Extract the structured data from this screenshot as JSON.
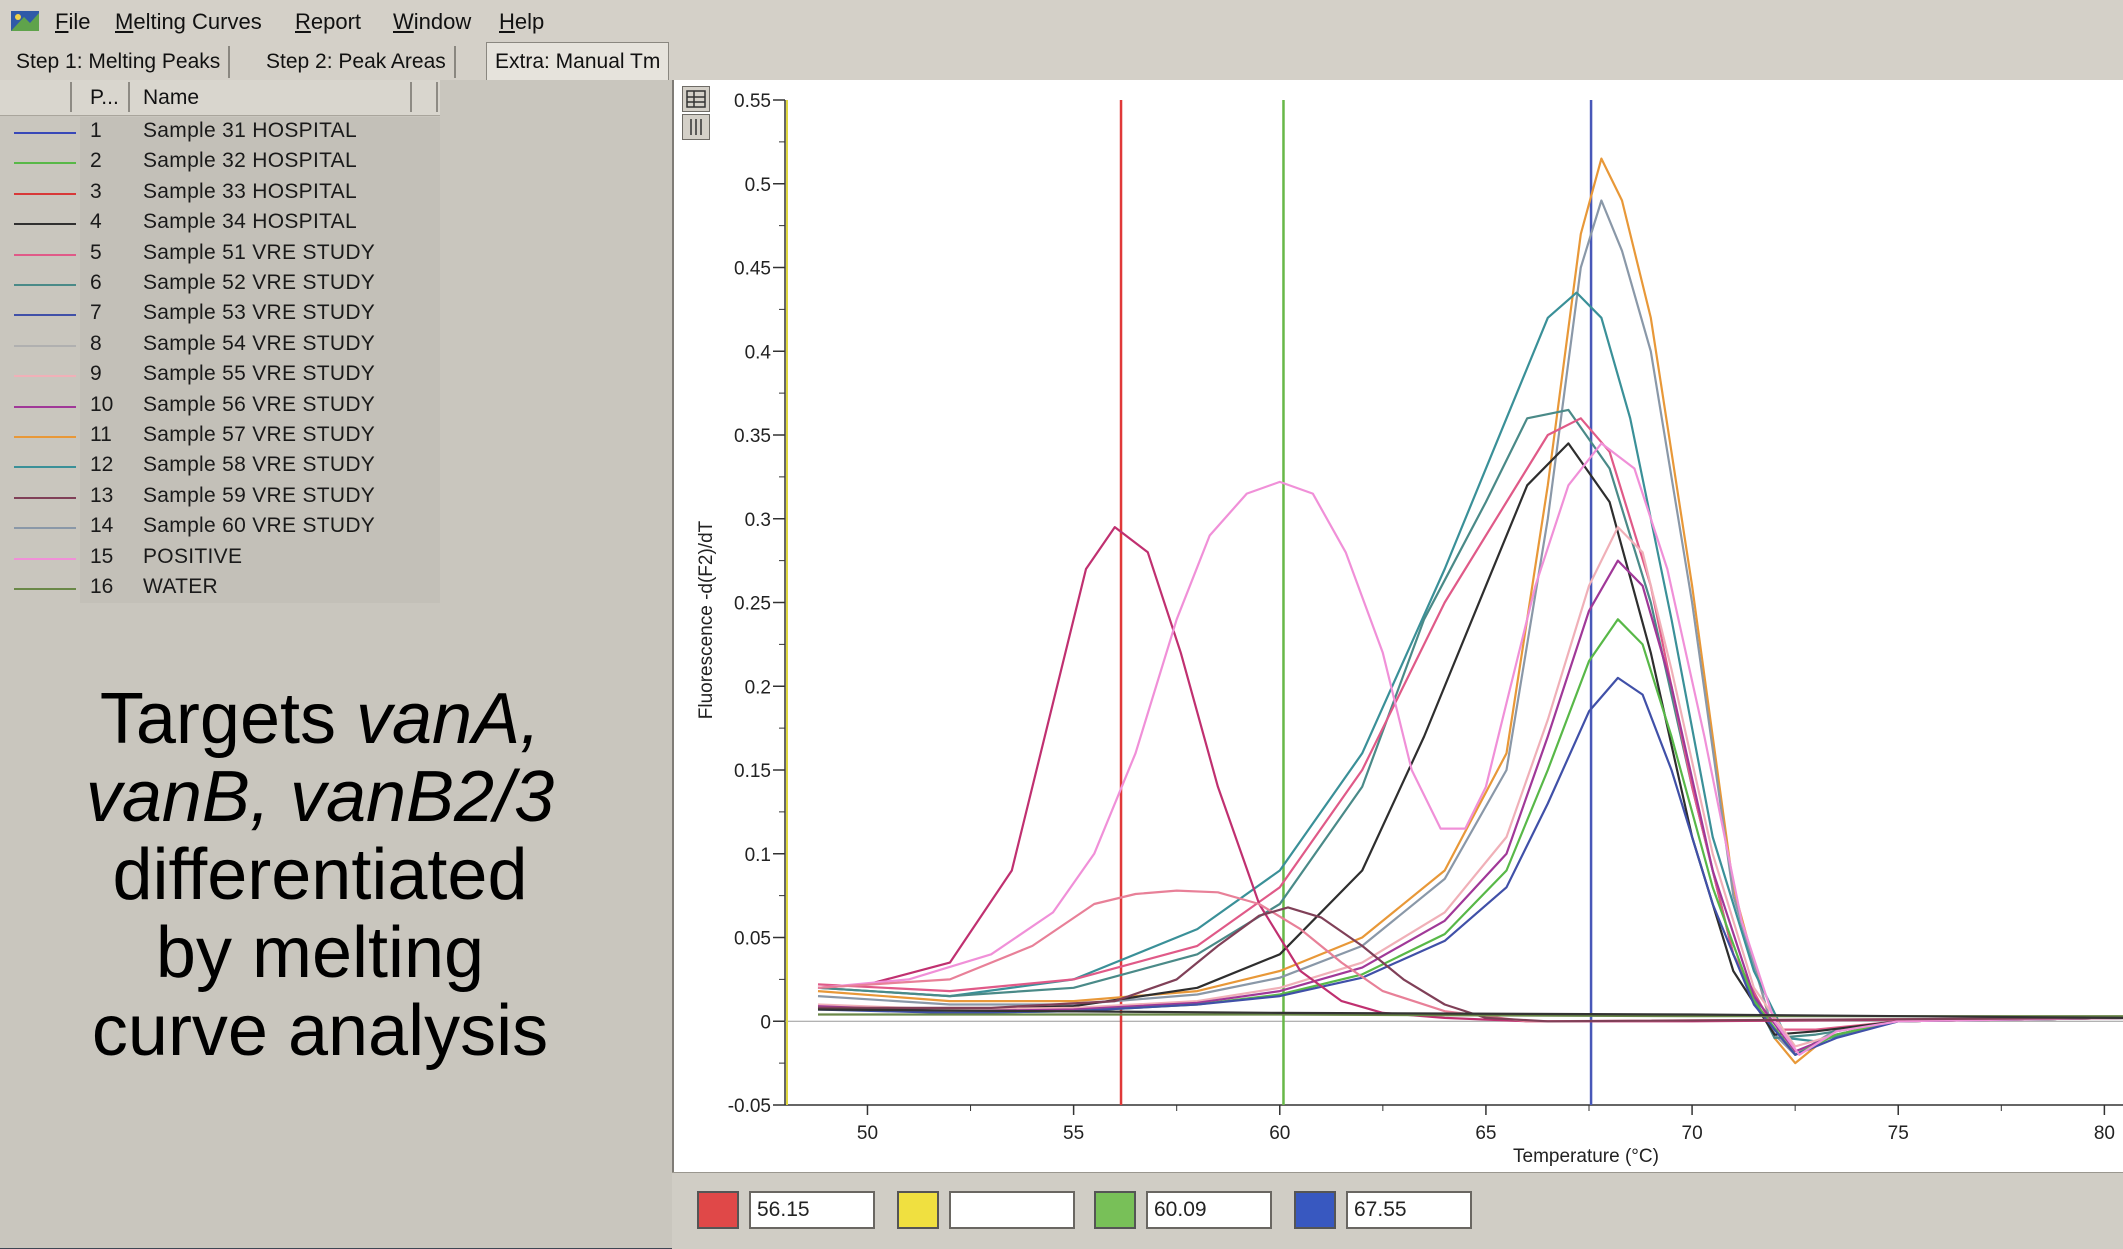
{
  "menu": [
    "File",
    "Melting Curves",
    "Report",
    "Window",
    "Help"
  ],
  "tabs": [
    {
      "label": "Step 1: Melting Peaks",
      "active": false
    },
    {
      "label": "Step 2: Peak Areas",
      "active": false
    },
    {
      "label": "Extra: Manual Tm",
      "active": true
    }
  ],
  "list": {
    "headers": {
      "pos": "P...",
      "name": "Name"
    },
    "samples": [
      {
        "idx": "1",
        "name": "Sample 31 HOSPITAL",
        "color": "#3848b8"
      },
      {
        "idx": "2",
        "name": "Sample 32 HOSPITAL",
        "color": "#58b848"
      },
      {
        "idx": "3",
        "name": "Sample 33 HOSPITAL",
        "color": "#d83838"
      },
      {
        "idx": "4",
        "name": "Sample 34 HOSPITAL",
        "color": "#303030"
      },
      {
        "idx": "5",
        "name": "Sample 51 VRE STUDY",
        "color": "#e05a88"
      },
      {
        "idx": "6",
        "name": "Sample 52 VRE STUDY",
        "color": "#4a8a88"
      },
      {
        "idx": "7",
        "name": "Sample 53 VRE STUDY",
        "color": "#4050a8"
      },
      {
        "idx": "8",
        "name": "Sample 54 VRE STUDY",
        "color": "#b0b0b0"
      },
      {
        "idx": "9",
        "name": "Sample 55 VRE STUDY",
        "color": "#f0b0b8"
      },
      {
        "idx": "10",
        "name": "Sample 56 VRE STUDY",
        "color": "#a03898"
      },
      {
        "idx": "11",
        "name": "Sample 57 VRE STUDY",
        "color": "#e89838"
      },
      {
        "idx": "12",
        "name": "Sample 58 VRE STUDY",
        "color": "#3a9098"
      },
      {
        "idx": "13",
        "name": "Sample 59 VRE STUDY",
        "color": "#804058"
      },
      {
        "idx": "14",
        "name": "Sample 60 VRE STUDY",
        "color": "#8a98a8"
      },
      {
        "idx": "15",
        "name": "POSITIVE",
        "color": "#f090d8"
      },
      {
        "idx": "16",
        "name": "WATER",
        "color": "#6a8848"
      }
    ]
  },
  "caption": {
    "line1_plain": "Targets ",
    "line1_italic": "vanA,",
    "line2_italic": "vanB, vanB2/3",
    "line3": "differentiated",
    "line4": "by melting",
    "line5": "curve analysis"
  },
  "tm_fields": [
    {
      "color": "#e04848",
      "value": "56.15"
    },
    {
      "color": "#f0e040",
      "value": ""
    },
    {
      "color": "#78c058",
      "value": "60.09"
    },
    {
      "color": "#3858c0",
      "value": "67.55"
    }
  ],
  "chart_data": {
    "type": "line",
    "xlabel": "Temperature (°C)",
    "ylabel": "Fluorescence -d(F2)/dT",
    "xlim": [
      48,
      80.5
    ],
    "ylim": [
      -0.05,
      0.55
    ],
    "xticks": [
      50,
      55,
      60,
      65,
      70,
      75,
      80
    ],
    "yticks": [
      -0.05,
      0,
      0.05,
      0.1,
      0.15,
      0.2,
      0.25,
      0.3,
      0.35,
      0.4,
      0.45,
      0.5,
      0.55
    ],
    "ytick_labels": [
      "-0.05",
      "0",
      "0.05",
      "0.1",
      "0.15",
      "0.2",
      "0.25",
      "0.3",
      "0.35",
      "0.4",
      "0.45",
      "0.5",
      "0.55"
    ],
    "tm_markers": [
      {
        "x": 56.15,
        "color": "#e03838"
      },
      {
        "x": 60.09,
        "color": "#68b848"
      },
      {
        "x": 67.55,
        "color": "#4858b8"
      }
    ],
    "series": [
      {
        "color": "#e89838",
        "x": [
          48.8,
          52,
          55,
          58,
          60,
          62,
          64,
          65.5,
          66.5,
          67.3,
          67.8,
          68.3,
          69,
          70,
          71,
          72,
          72.5,
          73.5,
          75,
          80.5
        ],
        "y": [
          0.018,
          0.012,
          0.012,
          0.018,
          0.03,
          0.05,
          0.09,
          0.16,
          0.32,
          0.47,
          0.515,
          0.49,
          0.42,
          0.26,
          0.08,
          -0.01,
          -0.025,
          -0.005,
          0.0,
          0.002
        ]
      },
      {
        "color": "#8a98a8",
        "x": [
          48.8,
          52,
          55,
          58,
          60,
          62,
          64,
          65.5,
          66.5,
          67.3,
          67.8,
          68.3,
          69,
          70,
          71,
          72,
          72.5,
          73.5,
          75,
          80.5
        ],
        "y": [
          0.015,
          0.01,
          0.01,
          0.016,
          0.026,
          0.045,
          0.085,
          0.15,
          0.3,
          0.45,
          0.49,
          0.46,
          0.4,
          0.25,
          0.075,
          -0.008,
          -0.02,
          -0.005,
          0.0,
          0.002
        ]
      },
      {
        "color": "#3a9098",
        "x": [
          48.8,
          52,
          55,
          58,
          60,
          62,
          64,
          65.5,
          66.5,
          67.2,
          67.8,
          68.5,
          69.5,
          70.5,
          71.5,
          72.3,
          73,
          75,
          80.5
        ],
        "y": [
          0.02,
          0.015,
          0.025,
          0.055,
          0.09,
          0.16,
          0.27,
          0.36,
          0.42,
          0.435,
          0.42,
          0.36,
          0.24,
          0.11,
          0.03,
          -0.01,
          -0.012,
          0.0,
          0.002
        ]
      },
      {
        "color": "#4a8a88",
        "x": [
          48.8,
          52,
          55,
          58,
          60,
          62,
          63.5,
          65,
          66,
          67,
          68,
          69,
          70,
          71,
          72,
          73,
          75,
          80.5
        ],
        "y": [
          0.02,
          0.015,
          0.02,
          0.04,
          0.07,
          0.14,
          0.24,
          0.31,
          0.36,
          0.365,
          0.33,
          0.25,
          0.14,
          0.04,
          -0.01,
          -0.008,
          0.0,
          0.002
        ]
      },
      {
        "color": "#e05a88",
        "x": [
          48.8,
          52,
          55,
          58,
          60,
          62,
          64,
          65.5,
          66.5,
          67.3,
          68,
          69,
          70,
          71,
          72,
          73,
          75,
          80.5
        ],
        "y": [
          0.022,
          0.018,
          0.025,
          0.045,
          0.08,
          0.15,
          0.25,
          0.31,
          0.35,
          0.36,
          0.34,
          0.26,
          0.14,
          0.04,
          -0.005,
          -0.005,
          0.0,
          0.002
        ]
      },
      {
        "color": "#2e2e2e",
        "x": [
          48.8,
          52,
          55,
          58,
          60,
          62,
          63.5,
          65,
          66,
          67,
          68,
          69,
          70,
          71,
          72,
          73,
          75,
          80.5
        ],
        "y": [
          0.008,
          0.007,
          0.009,
          0.02,
          0.04,
          0.09,
          0.17,
          0.26,
          0.32,
          0.345,
          0.31,
          0.22,
          0.11,
          0.03,
          -0.008,
          -0.006,
          0.0,
          0.002
        ]
      },
      {
        "color": "#f0b0b8",
        "x": [
          48.8,
          52,
          55,
          58,
          60,
          62,
          64,
          65.5,
          66.5,
          67.5,
          68.2,
          68.8,
          69.5,
          70.5,
          71.5,
          72.5,
          73.5,
          75,
          80.5
        ],
        "y": [
          0.01,
          0.007,
          0.008,
          0.012,
          0.02,
          0.035,
          0.065,
          0.11,
          0.18,
          0.26,
          0.295,
          0.28,
          0.21,
          0.1,
          0.02,
          -0.015,
          -0.008,
          0.0,
          0.002
        ]
      },
      {
        "color": "#a03898",
        "x": [
          48.8,
          52,
          55,
          58,
          60,
          62,
          64,
          65.5,
          66.5,
          67.5,
          68.2,
          68.8,
          69.5,
          70.5,
          71.5,
          72.5,
          73.5,
          75,
          80.5
        ],
        "y": [
          0.009,
          0.006,
          0.007,
          0.011,
          0.018,
          0.032,
          0.06,
          0.1,
          0.17,
          0.245,
          0.275,
          0.26,
          0.2,
          0.09,
          0.015,
          -0.018,
          -0.008,
          0.0,
          0.002
        ]
      },
      {
        "color": "#58b848",
        "x": [
          48.8,
          52,
          55,
          58,
          60,
          62,
          64,
          65.5,
          66.5,
          67.5,
          68.2,
          68.8,
          69.5,
          70.5,
          71.5,
          72.5,
          73.5,
          75,
          80.5
        ],
        "y": [
          0.008,
          0.005,
          0.006,
          0.01,
          0.016,
          0.028,
          0.052,
          0.09,
          0.15,
          0.215,
          0.24,
          0.225,
          0.17,
          0.08,
          0.012,
          -0.02,
          -0.008,
          0.0,
          0.002
        ]
      },
      {
        "color": "#4050a8",
        "x": [
          48.8,
          52,
          55,
          58,
          60,
          62,
          64,
          65.5,
          66.5,
          67.5,
          68.2,
          68.8,
          69.5,
          70.5,
          71.5,
          72.5,
          73.5,
          75,
          80.5
        ],
        "y": [
          0.007,
          0.005,
          0.006,
          0.01,
          0.015,
          0.026,
          0.048,
          0.08,
          0.13,
          0.185,
          0.205,
          0.195,
          0.15,
          0.07,
          0.01,
          -0.02,
          -0.01,
          0.0,
          0.002
        ]
      },
      {
        "color": "#c03070",
        "x": [
          48.8,
          50,
          52,
          53.5,
          54.5,
          55.3,
          56,
          56.8,
          57.6,
          58.5,
          59.5,
          60.5,
          61.5,
          62.5,
          64,
          66,
          70,
          80.5
        ],
        "y": [
          0.02,
          0.022,
          0.035,
          0.09,
          0.19,
          0.27,
          0.295,
          0.28,
          0.22,
          0.14,
          0.07,
          0.03,
          0.012,
          0.005,
          0.002,
          0.0,
          0.0,
          0.002
        ]
      },
      {
        "color": "#f090d8",
        "x": [
          48.8,
          51,
          53,
          54.5,
          55.5,
          56.5,
          57.5,
          58.3,
          59.2,
          60,
          60.8,
          61.6,
          62.5,
          63.2,
          63.9,
          64.5,
          65,
          65.5,
          66.2,
          67,
          67.8,
          68.6,
          69.4,
          70.3,
          71.2,
          72,
          72.6,
          73.5,
          75,
          80.5
        ],
        "y": [
          0.02,
          0.025,
          0.04,
          0.065,
          0.1,
          0.16,
          0.24,
          0.29,
          0.315,
          0.322,
          0.315,
          0.28,
          0.22,
          0.15,
          0.115,
          0.115,
          0.14,
          0.19,
          0.26,
          0.32,
          0.345,
          0.33,
          0.27,
          0.17,
          0.06,
          0.0,
          -0.02,
          -0.006,
          0.0,
          0.002
        ]
      },
      {
        "color": "#e88098",
        "x": [
          48.8,
          52,
          54,
          55.5,
          56.5,
          57.5,
          58.5,
          59.5,
          60.5,
          61.5,
          62.5,
          64,
          66,
          80.5
        ],
        "y": [
          0.02,
          0.025,
          0.045,
          0.07,
          0.076,
          0.078,
          0.077,
          0.07,
          0.055,
          0.035,
          0.018,
          0.006,
          0.0,
          0.002
        ]
      },
      {
        "color": "#804058",
        "x": [
          48.8,
          53,
          56,
          57.5,
          58.5,
          59.5,
          60.2,
          61,
          62,
          63,
          64,
          65,
          66.5,
          80.5
        ],
        "y": [
          0.008,
          0.008,
          0.012,
          0.025,
          0.045,
          0.063,
          0.068,
          0.062,
          0.045,
          0.025,
          0.01,
          0.002,
          0.0,
          0.002
        ]
      },
      {
        "color": "#6a8848",
        "x": [
          48.8,
          60,
          70,
          80.5
        ],
        "y": [
          0.004,
          0.004,
          0.003,
          0.003
        ]
      },
      {
        "color": "#333333",
        "x": [
          48.8,
          60,
          70,
          80.5
        ],
        "y": [
          0.007,
          0.005,
          0.004,
          0.002
        ]
      }
    ]
  }
}
